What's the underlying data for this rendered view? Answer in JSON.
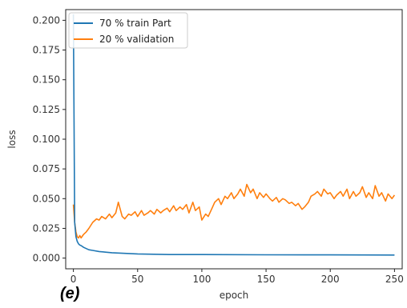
{
  "panel_label": "(e)",
  "chart_data": {
    "type": "line",
    "title": "",
    "xlabel": "epoch",
    "ylabel": "loss",
    "xlim": [
      -6,
      256
    ],
    "ylim": [
      -0.009,
      0.209
    ],
    "xticks": [
      0,
      50,
      100,
      150,
      200,
      250
    ],
    "yticks": [
      0.0,
      0.025,
      0.05,
      0.075,
      0.1,
      0.125,
      0.15,
      0.175,
      0.2
    ],
    "ytick_labels": [
      "0.000",
      "0.025",
      "0.050",
      "0.075",
      "0.100",
      "0.125",
      "0.150",
      "0.175",
      "0.200"
    ],
    "grid": false,
    "legend": "top-left",
    "series": [
      {
        "name": "70 % train Part",
        "color": "#1f77b4",
        "x": [
          0,
          1,
          2,
          3,
          4,
          5,
          6,
          8,
          10,
          12,
          15,
          20,
          25,
          30,
          40,
          50,
          75,
          100,
          150,
          200,
          250
        ],
        "y": [
          0.205,
          0.03,
          0.018,
          0.014,
          0.012,
          0.011,
          0.0105,
          0.009,
          0.008,
          0.007,
          0.0065,
          0.0055,
          0.005,
          0.0045,
          0.004,
          0.0035,
          0.003,
          0.003,
          0.0028,
          0.0027,
          0.0026
        ]
      },
      {
        "name": "20 % validation",
        "color": "#ff7f0e",
        "x": [
          0,
          1,
          2,
          3,
          4,
          5,
          6,
          8,
          10,
          12,
          15,
          18,
          20,
          22,
          25,
          28,
          30,
          33,
          35,
          38,
          40,
          43,
          45,
          48,
          50,
          53,
          55,
          58,
          60,
          63,
          65,
          68,
          70,
          73,
          75,
          78,
          80,
          83,
          85,
          88,
          90,
          93,
          95,
          98,
          100,
          103,
          105,
          108,
          110,
          113,
          115,
          118,
          120,
          123,
          125,
          128,
          130,
          133,
          135,
          138,
          140,
          143,
          145,
          148,
          150,
          153,
          155,
          158,
          160,
          163,
          165,
          168,
          170,
          173,
          175,
          178,
          180,
          183,
          185,
          188,
          190,
          193,
          195,
          198,
          200,
          203,
          205,
          208,
          210,
          213,
          215,
          218,
          220,
          223,
          225,
          228,
          230,
          233,
          235,
          238,
          240,
          243,
          245,
          248,
          250
        ],
        "y": [
          0.045,
          0.03,
          0.022,
          0.018,
          0.017,
          0.019,
          0.017,
          0.02,
          0.022,
          0.025,
          0.03,
          0.033,
          0.032,
          0.035,
          0.033,
          0.037,
          0.034,
          0.038,
          0.047,
          0.035,
          0.033,
          0.037,
          0.036,
          0.039,
          0.035,
          0.04,
          0.036,
          0.038,
          0.04,
          0.037,
          0.041,
          0.038,
          0.04,
          0.042,
          0.039,
          0.044,
          0.04,
          0.043,
          0.041,
          0.045,
          0.038,
          0.047,
          0.04,
          0.043,
          0.032,
          0.037,
          0.035,
          0.042,
          0.047,
          0.05,
          0.045,
          0.052,
          0.05,
          0.055,
          0.05,
          0.054,
          0.058,
          0.052,
          0.062,
          0.055,
          0.058,
          0.05,
          0.055,
          0.051,
          0.054,
          0.05,
          0.048,
          0.051,
          0.047,
          0.05,
          0.049,
          0.046,
          0.047,
          0.044,
          0.046,
          0.041,
          0.043,
          0.047,
          0.052,
          0.054,
          0.056,
          0.052,
          0.058,
          0.054,
          0.055,
          0.05,
          0.053,
          0.056,
          0.052,
          0.058,
          0.05,
          0.056,
          0.052,
          0.055,
          0.06,
          0.051,
          0.055,
          0.05,
          0.061,
          0.052,
          0.055,
          0.048,
          0.054,
          0.05,
          0.053
        ]
      }
    ]
  }
}
